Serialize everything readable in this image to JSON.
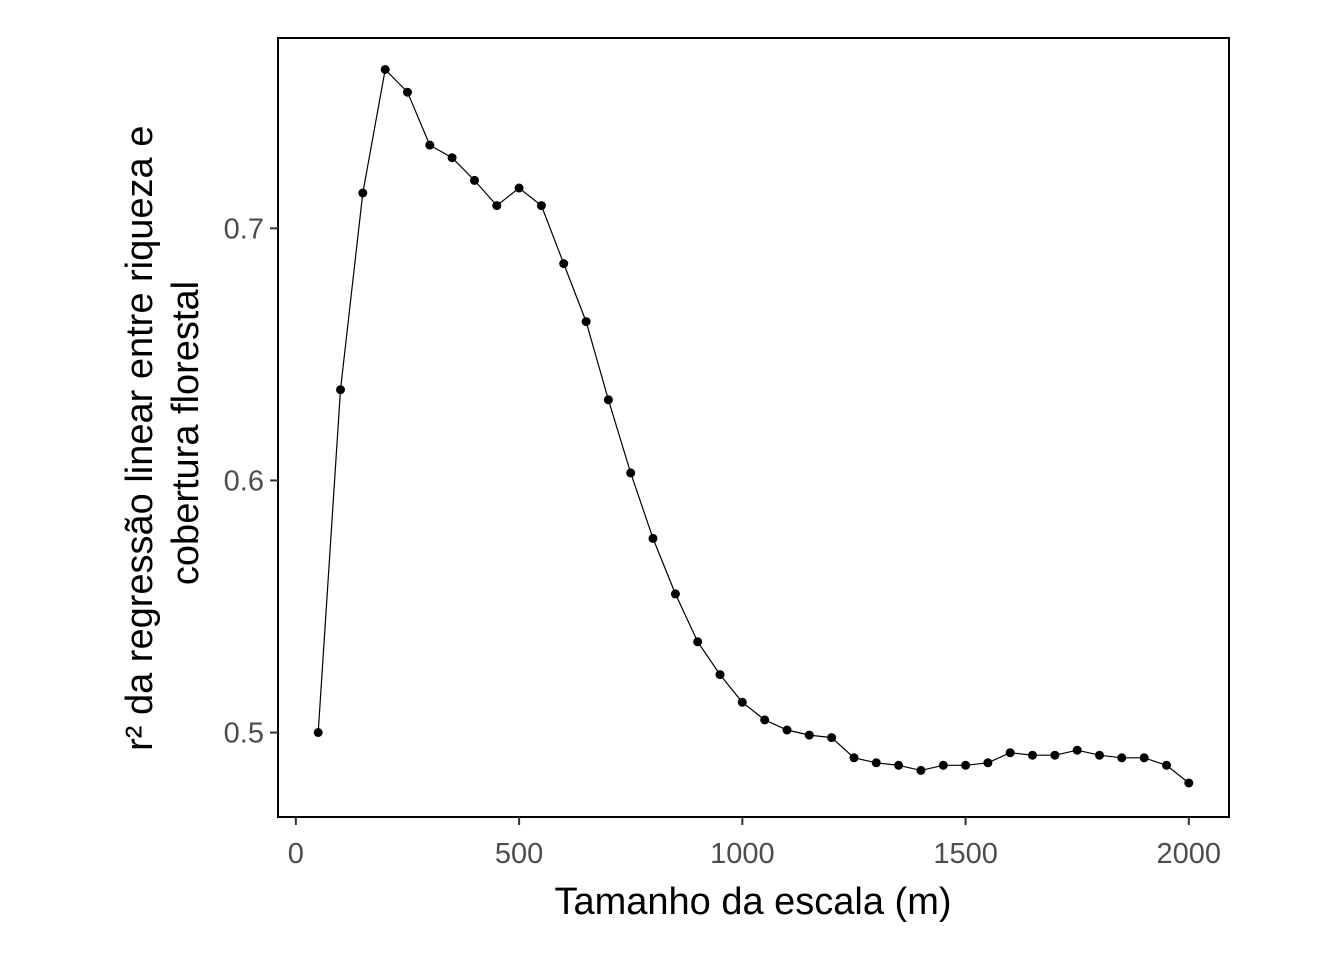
{
  "chart_data": {
    "type": "line",
    "xlabel": "Tamanho da escala (m)",
    "ylabel": [
      "r² da regressão linear entre riqueza e",
      "cobertura florestal"
    ],
    "xlim": [
      -40,
      2090
    ],
    "ylim": [
      0.4665,
      0.7755
    ],
    "x_ticks": [
      0,
      500,
      1000,
      1500,
      2000
    ],
    "x_tick_labels": [
      "0",
      "500",
      "1000",
      "1500",
      "2000"
    ],
    "y_ticks": [
      0.5,
      0.6,
      0.7
    ],
    "y_tick_labels": [
      "0.5",
      "0.6",
      "0.7"
    ],
    "grid": false,
    "series": [
      {
        "x": [
          50,
          100,
          150,
          200,
          250,
          300,
          350,
          400,
          450,
          500,
          550,
          600,
          650,
          700,
          750,
          800,
          850,
          900,
          950,
          1000,
          1050,
          1100,
          1150,
          1200,
          1250,
          1300,
          1350,
          1400,
          1450,
          1500,
          1550,
          1600,
          1650,
          1700,
          1750,
          1800,
          1850,
          1900,
          1950,
          2000
        ],
        "y": [
          0.5,
          0.636,
          0.714,
          0.763,
          0.754,
          0.733,
          0.728,
          0.719,
          0.709,
          0.716,
          0.709,
          0.686,
          0.663,
          0.632,
          0.603,
          0.577,
          0.555,
          0.536,
          0.523,
          0.512,
          0.505,
          0.501,
          0.499,
          0.498,
          0.49,
          0.488,
          0.487,
          0.485,
          0.487,
          0.487,
          0.488,
          0.492,
          0.491,
          0.491,
          0.493,
          0.491,
          0.49,
          0.49,
          0.487,
          0.48
        ]
      }
    ],
    "colors": {
      "line": "#000000",
      "point": "#000000",
      "tick_label": "#4d4d4d",
      "axis_title": "#000000"
    }
  }
}
